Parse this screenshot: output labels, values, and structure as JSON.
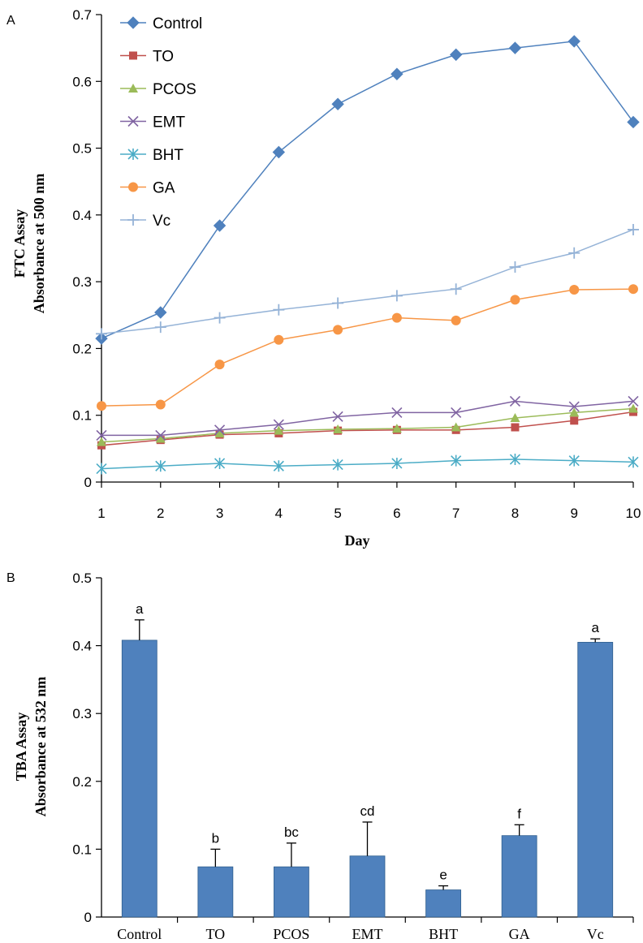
{
  "panels": {
    "a": "A",
    "b": "B"
  },
  "chart_data": [
    {
      "type": "line",
      "panel": "A",
      "xlabel": "Day",
      "ylabel": [
        "FTC Assay",
        "Absorbance at 500 nm"
      ],
      "x": [
        1,
        2,
        3,
        4,
        5,
        6,
        7,
        8,
        9,
        10
      ],
      "xlim": [
        1,
        10
      ],
      "ylim": [
        0,
        0.7
      ],
      "yticks": [
        "0",
        "0.1",
        "0.2",
        "0.3",
        "0.4",
        "0.5",
        "0.6",
        "0.7"
      ],
      "xticks": [
        "1",
        "2",
        "3",
        "4",
        "5",
        "6",
        "7",
        "8",
        "9",
        "10"
      ],
      "grid": false,
      "legend_position": "top-left",
      "series": [
        {
          "name": "Control",
          "color": "#4f81bd",
          "marker": "diamond",
          "values": [
            0.215,
            0.254,
            0.384,
            0.494,
            0.566,
            0.611,
            0.64,
            0.65,
            0.66,
            0.539
          ]
        },
        {
          "name": "TO",
          "color": "#c0504d",
          "marker": "square",
          "values": [
            0.055,
            0.063,
            0.071,
            0.073,
            0.077,
            0.078,
            0.078,
            0.082,
            0.092,
            0.105
          ]
        },
        {
          "name": "PCOS",
          "color": "#9bbb59",
          "marker": "triangle",
          "values": [
            0.06,
            0.065,
            0.073,
            0.077,
            0.079,
            0.08,
            0.082,
            0.096,
            0.104,
            0.11
          ]
        },
        {
          "name": "EMT",
          "color": "#8064a2",
          "marker": "x",
          "values": [
            0.07,
            0.07,
            0.078,
            0.086,
            0.098,
            0.104,
            0.104,
            0.121,
            0.113,
            0.121
          ]
        },
        {
          "name": "BHT",
          "color": "#4bacc6",
          "marker": "star",
          "values": [
            0.02,
            0.024,
            0.028,
            0.024,
            0.026,
            0.028,
            0.032,
            0.034,
            0.032,
            0.03
          ]
        },
        {
          "name": "GA",
          "color": "#f79646",
          "marker": "circle",
          "values": [
            0.114,
            0.116,
            0.176,
            0.213,
            0.228,
            0.246,
            0.242,
            0.273,
            0.288,
            0.289
          ]
        },
        {
          "name": "Vc",
          "color": "#95b3d7",
          "marker": "plus",
          "values": [
            0.222,
            0.232,
            0.246,
            0.258,
            0.268,
            0.279,
            0.289,
            0.322,
            0.343,
            0.378
          ]
        }
      ]
    },
    {
      "type": "bar",
      "panel": "B",
      "xlabel": "",
      "ylabel": [
        "TBA Assay",
        "Absorbance at 532 nm"
      ],
      "categories": [
        "Control",
        "TO",
        "PCOS",
        "EMT",
        "BHT",
        "GA",
        "Vc"
      ],
      "values": [
        0.408,
        0.074,
        0.074,
        0.09,
        0.04,
        0.12,
        0.405
      ],
      "errors": [
        0.03,
        0.026,
        0.035,
        0.05,
        0.006,
        0.016,
        0.005
      ],
      "significance": [
        "a",
        "b",
        "bc",
        "cd",
        "e",
        "f",
        "a"
      ],
      "ylim": [
        0,
        0.5
      ],
      "yticks": [
        "0",
        "0.1",
        "0.2",
        "0.3",
        "0.4",
        "0.5"
      ],
      "color": "#4f81bd",
      "grid": false
    }
  ]
}
